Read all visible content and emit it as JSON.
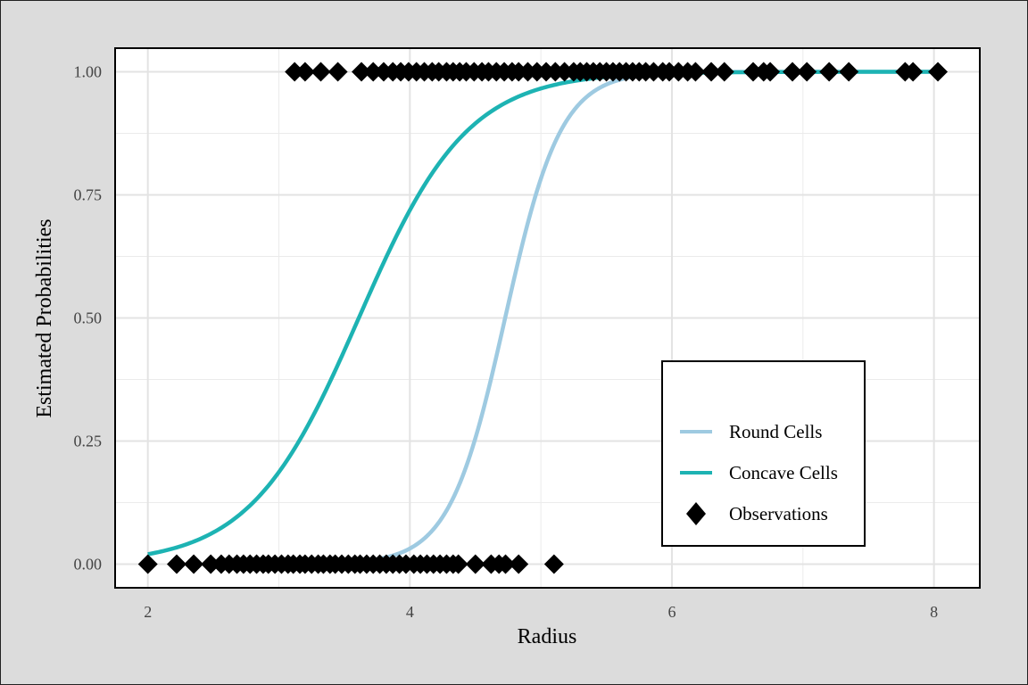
{
  "chart_data": {
    "type": "line",
    "xlabel": "Radius",
    "ylabel": "Estimated Probabilities",
    "xlim": [
      1.75,
      8.35
    ],
    "ylim": [
      -0.048,
      1.048
    ],
    "xticks": [
      2,
      4,
      6,
      8
    ],
    "xtick_labels": [
      "2",
      "4",
      "6",
      "8"
    ],
    "yticks": [
      0,
      0.25,
      0.5,
      0.75,
      1
    ],
    "ytick_labels": [
      "0.00",
      "0.25",
      "0.50",
      "0.75",
      "1.00"
    ],
    "grid": true,
    "legend_position": "bottom-right",
    "series": [
      {
        "name": "Round Cells",
        "kind": "logistic",
        "color": "#9ecae1",
        "x_range": [
          3.5,
          8.0
        ],
        "points": [
          [
            3.5,
            0.01
          ],
          [
            4.0,
            0.04
          ],
          [
            4.2,
            0.08
          ],
          [
            4.4,
            0.18
          ],
          [
            4.6,
            0.36
          ],
          [
            4.727,
            0.5
          ],
          [
            4.8,
            0.59
          ],
          [
            5.0,
            0.76
          ],
          [
            5.2,
            0.88
          ],
          [
            5.5,
            0.96
          ],
          [
            6.0,
            0.99
          ],
          [
            8.0,
            1.0
          ]
        ]
      },
      {
        "name": "Concave Cells",
        "kind": "logistic",
        "color": "#1db3b3",
        "x_range": [
          2.0,
          8.0
        ],
        "points": [
          [
            2.0,
            0.022
          ],
          [
            2.5,
            0.05
          ],
          [
            3.0,
            0.17
          ],
          [
            3.25,
            0.28
          ],
          [
            3.5,
            0.42
          ],
          [
            3.61,
            0.5
          ],
          [
            3.75,
            0.59
          ],
          [
            4.0,
            0.75
          ],
          [
            4.5,
            0.9
          ],
          [
            5.0,
            0.96
          ],
          [
            5.5,
            0.99
          ],
          [
            6.0,
            1.0
          ],
          [
            8.0,
            1.0
          ]
        ]
      },
      {
        "name": "Observations",
        "kind": "points",
        "marker": "diamond",
        "color": "#000000",
        "y0_x": [
          2.0,
          2.22,
          2.35,
          2.48,
          2.56,
          2.62,
          2.68,
          2.73,
          2.78,
          2.83,
          2.88,
          2.92,
          2.97,
          3.02,
          3.07,
          3.11,
          3.16,
          3.2,
          3.25,
          3.3,
          3.34,
          3.39,
          3.43,
          3.48,
          3.53,
          3.58,
          3.62,
          3.67,
          3.72,
          3.77,
          3.82,
          3.87,
          3.92,
          3.97,
          4.03,
          4.08,
          4.13,
          4.18,
          4.23,
          4.28,
          4.33,
          4.37,
          4.5,
          4.62,
          4.68,
          4.73,
          4.83,
          5.1
        ],
        "y1_x": [
          3.12,
          3.2,
          3.32,
          3.45,
          3.63,
          3.72,
          3.8,
          3.87,
          3.93,
          3.99,
          4.05,
          4.11,
          4.17,
          4.22,
          4.28,
          4.33,
          4.38,
          4.43,
          4.49,
          4.55,
          4.6,
          4.66,
          4.72,
          4.78,
          4.83,
          4.9,
          4.97,
          5.04,
          5.11,
          5.18,
          5.25,
          5.3,
          5.35,
          5.4,
          5.45,
          5.5,
          5.55,
          5.6,
          5.65,
          5.7,
          5.75,
          5.8,
          5.86,
          5.93,
          5.98,
          6.05,
          6.12,
          6.18,
          6.3,
          6.4,
          6.62,
          6.7,
          6.75,
          6.92,
          7.03,
          7.2,
          7.35,
          7.78,
          7.84,
          8.03
        ]
      }
    ]
  }
}
